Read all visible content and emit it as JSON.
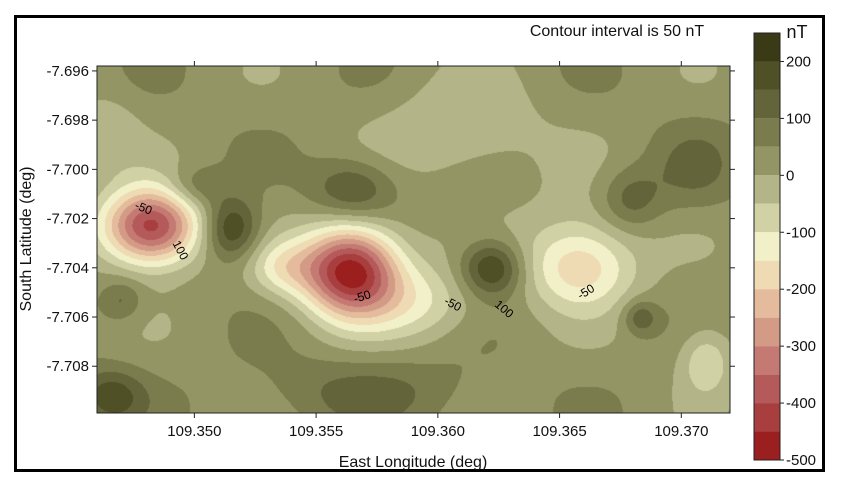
{
  "chart_data": {
    "type": "heatmap",
    "subtype": "filled-contour-map",
    "annotation": "Contour interval is 50 nT",
    "xlabel": "East Longitude (deg)",
    "ylabel": "South Latitude (deg)",
    "x_ticks": [
      "109.350",
      "109.355",
      "109.360",
      "109.365",
      "109.370"
    ],
    "y_ticks": [
      "-7.696",
      "-7.698",
      "-7.700",
      "-7.702",
      "-7.704",
      "-7.706",
      "-7.708"
    ],
    "xlim": [
      109.346,
      109.372
    ],
    "ylim": [
      -7.7099,
      -7.6958
    ],
    "colorbar": {
      "unit": "nT",
      "labels": [
        "200",
        "100",
        "0",
        "-100",
        "-200",
        "-300",
        "-400",
        "-500"
      ],
      "levels": [
        250,
        200,
        150,
        100,
        50,
        0,
        -50,
        -100,
        -150,
        -200,
        -250,
        -300,
        -350,
        -400,
        -450,
        -500
      ],
      "colors": [
        "#3a3a16",
        "#4f5026",
        "#63643a",
        "#7a7c4e",
        "#939565",
        "#b3b487",
        "#d1d1a6",
        "#f2f0c8",
        "#eedbb4",
        "#e4bb9c",
        "#d39a86",
        "#c47a72",
        "#b55a5a",
        "#a83e3e",
        "#9b1f1f"
      ]
    },
    "contour_labels": [
      {
        "text": "-50",
        "x": 109.3479,
        "y": -7.7016,
        "rotate": 22
      },
      {
        "text": "100",
        "x": 109.3494,
        "y": -7.7033,
        "rotate": 62
      },
      {
        "text": "-50",
        "x": 109.3569,
        "y": -7.7052,
        "rotate": -18
      },
      {
        "text": "-50",
        "x": 109.3606,
        "y": -7.7055,
        "rotate": 28
      },
      {
        "text": "100",
        "x": 109.3627,
        "y": -7.7057,
        "rotate": 40
      },
      {
        "text": "-50",
        "x": 109.3661,
        "y": -7.705,
        "rotate": -32
      }
    ],
    "anomalies": [
      {
        "x": 109.3482,
        "y": -7.7023,
        "value": -470,
        "sx": 0.0014,
        "sy": 0.0011
      },
      {
        "x": 109.3564,
        "y": -7.7041,
        "value": -520,
        "sx": 0.0014,
        "sy": 0.0013
      },
      {
        "x": 109.3658,
        "y": -7.704,
        "value": -185,
        "sx": 0.0016,
        "sy": 0.0012
      },
      {
        "x": 109.366,
        "y": -7.7027,
        "value": -60,
        "sx": 0.0018,
        "sy": 0.0016
      },
      {
        "x": 109.3536,
        "y": -7.704,
        "value": -130,
        "sx": 0.001,
        "sy": 0.0008
      },
      {
        "x": 109.3593,
        "y": -7.7054,
        "value": -120,
        "sx": 0.0017,
        "sy": 0.0011
      },
      {
        "x": 109.361,
        "y": -7.6984,
        "value": -90,
        "sx": 0.0022,
        "sy": 0.0014
      },
      {
        "x": 109.371,
        "y": -7.7077,
        "value": -130,
        "sx": 0.0008,
        "sy": 0.001
      },
      {
        "x": 109.3464,
        "y": -7.6985,
        "value": -70,
        "sx": 0.0009,
        "sy": 0.0011
      },
      {
        "x": 109.3515,
        "y": -7.7024,
        "value": 200,
        "sx": 0.0008,
        "sy": 0.0009
      },
      {
        "x": 109.3622,
        "y": -7.704,
        "value": 210,
        "sx": 0.0009,
        "sy": 0.0008
      },
      {
        "x": 109.3565,
        "y": -7.7008,
        "value": 140,
        "sx": 0.0012,
        "sy": 0.0009
      },
      {
        "x": 109.3679,
        "y": -7.7012,
        "value": 110,
        "sx": 0.0009,
        "sy": 0.0009
      },
      {
        "x": 109.35,
        "y": -7.7007,
        "value": 90,
        "sx": 0.0008,
        "sy": 0.0006
      },
      {
        "x": 109.3683,
        "y": -7.706,
        "value": 120,
        "sx": 0.0005,
        "sy": 0.0005
      },
      {
        "x": 109.347,
        "y": -7.7053,
        "value": 90,
        "sx": 0.0006,
        "sy": 0.0006
      },
      {
        "x": 109.3465,
        "y": -7.7092,
        "value": 150,
        "sx": 0.001,
        "sy": 0.0008
      },
      {
        "x": 109.3705,
        "y": -7.7,
        "value": 70,
        "sx": 0.0012,
        "sy": 0.0012
      },
      {
        "x": 109.357,
        "y": -7.709,
        "value": 80,
        "sx": 0.003,
        "sy": 0.001
      }
    ],
    "background_value": 30
  }
}
